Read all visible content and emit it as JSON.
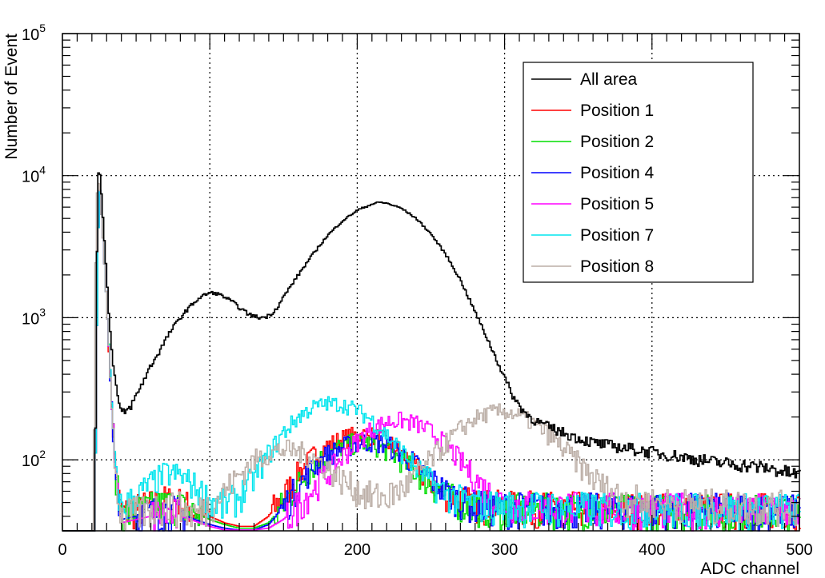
{
  "chart_data": {
    "type": "line",
    "title": "",
    "xlabel": "ADC channel",
    "ylabel": "Number of Event",
    "xlim": [
      0,
      500
    ],
    "ylim": [
      31.6,
      100000
    ],
    "yscale": "log",
    "grid": true,
    "legend_position": "top-right",
    "x_ticks": [
      {
        "value": 0,
        "label": "0"
      },
      {
        "value": 100,
        "label": "100"
      },
      {
        "value": 200,
        "label": "200"
      },
      {
        "value": 300,
        "label": "300"
      },
      {
        "value": 400,
        "label": "400"
      },
      {
        "value": 500,
        "label": "500"
      }
    ],
    "y_ticks": [
      {
        "value": 100,
        "base": "10",
        "exp": "2"
      },
      {
        "value": 1000,
        "base": "10",
        "exp": "3"
      },
      {
        "value": 10000,
        "base": "10",
        "exp": "4"
      },
      {
        "value": 100000,
        "base": "10",
        "exp": "5"
      }
    ],
    "series": [
      {
        "name": "All area",
        "color": "#000000",
        "points": [
          [
            20,
            31
          ],
          [
            22,
            31
          ],
          [
            23,
            900
          ],
          [
            24,
            9500
          ],
          [
            25,
            11500
          ],
          [
            26,
            9000
          ],
          [
            28,
            4200
          ],
          [
            30,
            2000
          ],
          [
            32,
            900
          ],
          [
            35,
            420
          ],
          [
            38,
            260
          ],
          [
            40,
            210
          ],
          [
            45,
            225
          ],
          [
            50,
            280
          ],
          [
            55,
            360
          ],
          [
            60,
            460
          ],
          [
            65,
            560
          ],
          [
            70,
            700
          ],
          [
            75,
            850
          ],
          [
            80,
            1000
          ],
          [
            85,
            1150
          ],
          [
            90,
            1300
          ],
          [
            95,
            1420
          ],
          [
            100,
            1500
          ],
          [
            105,
            1480
          ],
          [
            110,
            1400
          ],
          [
            115,
            1300
          ],
          [
            120,
            1180
          ],
          [
            125,
            1080
          ],
          [
            130,
            1020
          ],
          [
            135,
            1000
          ],
          [
            140,
            1030
          ],
          [
            145,
            1150
          ],
          [
            150,
            1400
          ],
          [
            160,
            2000
          ],
          [
            170,
            2800
          ],
          [
            180,
            3800
          ],
          [
            190,
            4800
          ],
          [
            200,
            5700
          ],
          [
            210,
            6300
          ],
          [
            215,
            6500
          ],
          [
            220,
            6400
          ],
          [
            230,
            5900
          ],
          [
            240,
            5000
          ],
          [
            250,
            3900
          ],
          [
            260,
            2800
          ],
          [
            270,
            1850
          ],
          [
            280,
            1100
          ],
          [
            290,
            650
          ],
          [
            300,
            380
          ],
          [
            305,
            290
          ],
          [
            310,
            240
          ],
          [
            315,
            210
          ],
          [
            320,
            190
          ],
          [
            330,
            170
          ],
          [
            340,
            155
          ],
          [
            350,
            142
          ],
          [
            360,
            132
          ],
          [
            380,
            122
          ],
          [
            400,
            113
          ],
          [
            420,
            105
          ],
          [
            440,
            97
          ],
          [
            460,
            92
          ],
          [
            480,
            87
          ],
          [
            490,
            82
          ],
          [
            500,
            78
          ]
        ]
      },
      {
        "name": "Position 1",
        "color": "#ff0000",
        "points": [
          [
            20,
            31
          ],
          [
            22,
            31
          ],
          [
            23,
            400
          ],
          [
            25,
            9500
          ],
          [
            28,
            3000
          ],
          [
            32,
            500
          ],
          [
            36,
            80
          ],
          [
            40,
            42
          ],
          [
            50,
            45
          ],
          [
            60,
            48
          ],
          [
            70,
            52
          ],
          [
            80,
            50
          ],
          [
            90,
            44
          ],
          [
            100,
            40
          ],
          [
            110,
            36
          ],
          [
            120,
            34
          ],
          [
            130,
            34
          ],
          [
            140,
            40
          ],
          [
            150,
            55
          ],
          [
            160,
            80
          ],
          [
            170,
            105
          ],
          [
            180,
            125
          ],
          [
            190,
            140
          ],
          [
            200,
            150
          ],
          [
            210,
            148
          ],
          [
            220,
            135
          ],
          [
            230,
            112
          ],
          [
            240,
            88
          ],
          [
            250,
            70
          ],
          [
            260,
            58
          ],
          [
            270,
            52
          ],
          [
            280,
            49
          ],
          [
            300,
            47
          ],
          [
            350,
            46
          ],
          [
            400,
            45
          ],
          [
            450,
            45
          ],
          [
            500,
            45
          ]
        ]
      },
      {
        "name": "Position 2",
        "color": "#00dd00",
        "points": [
          [
            20,
            31
          ],
          [
            22,
            31
          ],
          [
            23,
            400
          ],
          [
            25,
            9500
          ],
          [
            28,
            3000
          ],
          [
            32,
            500
          ],
          [
            36,
            80
          ],
          [
            40,
            40
          ],
          [
            50,
            43
          ],
          [
            60,
            46
          ],
          [
            70,
            49
          ],
          [
            80,
            47
          ],
          [
            90,
            42
          ],
          [
            100,
            38
          ],
          [
            110,
            35
          ],
          [
            120,
            33
          ],
          [
            130,
            33
          ],
          [
            140,
            36
          ],
          [
            150,
            48
          ],
          [
            160,
            68
          ],
          [
            170,
            90
          ],
          [
            180,
            110
          ],
          [
            190,
            125
          ],
          [
            200,
            132
          ],
          [
            210,
            130
          ],
          [
            220,
            118
          ],
          [
            230,
            100
          ],
          [
            240,
            82
          ],
          [
            250,
            67
          ],
          [
            260,
            56
          ],
          [
            270,
            50
          ],
          [
            280,
            47
          ],
          [
            300,
            45
          ],
          [
            350,
            45
          ],
          [
            400,
            44
          ],
          [
            450,
            44
          ],
          [
            500,
            43
          ]
        ]
      },
      {
        "name": "Position 4",
        "color": "#0000ff",
        "points": [
          [
            20,
            31
          ],
          [
            22,
            31
          ],
          [
            23,
            400
          ],
          [
            25,
            9500
          ],
          [
            28,
            3000
          ],
          [
            32,
            500
          ],
          [
            36,
            80
          ],
          [
            40,
            38
          ],
          [
            50,
            40
          ],
          [
            60,
            42
          ],
          [
            70,
            44
          ],
          [
            80,
            42
          ],
          [
            90,
            38
          ],
          [
            100,
            35
          ],
          [
            110,
            33
          ],
          [
            120,
            32
          ],
          [
            130,
            32
          ],
          [
            140,
            35
          ],
          [
            150,
            46
          ],
          [
            160,
            66
          ],
          [
            170,
            88
          ],
          [
            180,
            108
          ],
          [
            190,
            122
          ],
          [
            200,
            132
          ],
          [
            210,
            135
          ],
          [
            220,
            128
          ],
          [
            230,
            112
          ],
          [
            240,
            92
          ],
          [
            250,
            74
          ],
          [
            260,
            60
          ],
          [
            270,
            52
          ],
          [
            280,
            48
          ],
          [
            300,
            46
          ],
          [
            350,
            45
          ],
          [
            400,
            45
          ],
          [
            450,
            45
          ],
          [
            500,
            44
          ]
        ]
      },
      {
        "name": "Position 5",
        "color": "#ff00ff",
        "points": [
          [
            20,
            31
          ],
          [
            22,
            31
          ],
          [
            23,
            400
          ],
          [
            25,
            9500
          ],
          [
            28,
            3000
          ],
          [
            32,
            500
          ],
          [
            36,
            80
          ],
          [
            40,
            36
          ],
          [
            50,
            38
          ],
          [
            60,
            40
          ],
          [
            70,
            42
          ],
          [
            80,
            40
          ],
          [
            90,
            37
          ],
          [
            100,
            34
          ],
          [
            110,
            32
          ],
          [
            120,
            32
          ],
          [
            130,
            32
          ],
          [
            140,
            33
          ],
          [
            150,
            38
          ],
          [
            160,
            48
          ],
          [
            170,
            62
          ],
          [
            180,
            80
          ],
          [
            190,
            105
          ],
          [
            200,
            135
          ],
          [
            210,
            165
          ],
          [
            220,
            185
          ],
          [
            230,
            190
          ],
          [
            240,
            180
          ],
          [
            250,
            158
          ],
          [
            260,
            128
          ],
          [
            270,
            98
          ],
          [
            280,
            74
          ],
          [
            290,
            58
          ],
          [
            300,
            50
          ],
          [
            320,
            47
          ],
          [
            350,
            46
          ],
          [
            400,
            45
          ],
          [
            450,
            45
          ],
          [
            500,
            44
          ]
        ]
      },
      {
        "name": "Position 7",
        "color": "#00e5ee",
        "points": [
          [
            20,
            31
          ],
          [
            22,
            31
          ],
          [
            23,
            400
          ],
          [
            25,
            9500
          ],
          [
            28,
            3000
          ],
          [
            32,
            500
          ],
          [
            36,
            80
          ],
          [
            40,
            45
          ],
          [
            50,
            55
          ],
          [
            60,
            68
          ],
          [
            70,
            80
          ],
          [
            80,
            78
          ],
          [
            90,
            65
          ],
          [
            100,
            52
          ],
          [
            110,
            48
          ],
          [
            120,
            55
          ],
          [
            130,
            75
          ],
          [
            140,
            110
          ],
          [
            150,
            155
          ],
          [
            160,
            200
          ],
          [
            170,
            235
          ],
          [
            180,
            250
          ],
          [
            190,
            245
          ],
          [
            200,
            225
          ],
          [
            210,
            190
          ],
          [
            220,
            150
          ],
          [
            230,
            115
          ],
          [
            240,
            88
          ],
          [
            250,
            70
          ],
          [
            260,
            58
          ],
          [
            270,
            52
          ],
          [
            280,
            49
          ],
          [
            300,
            47
          ],
          [
            350,
            46
          ],
          [
            400,
            45
          ],
          [
            450,
            45
          ],
          [
            500,
            45
          ]
        ]
      },
      {
        "name": "Position 8",
        "color": "#bbaea6",
        "points": [
          [
            20,
            31
          ],
          [
            21,
            31
          ],
          [
            22,
            850
          ],
          [
            23,
            7000
          ],
          [
            25,
            9500
          ],
          [
            28,
            3000
          ],
          [
            32,
            500
          ],
          [
            36,
            80
          ],
          [
            40,
            40
          ],
          [
            50,
            42
          ],
          [
            60,
            45
          ],
          [
            70,
            48
          ],
          [
            80,
            46
          ],
          [
            90,
            42
          ],
          [
            100,
            48
          ],
          [
            110,
            60
          ],
          [
            120,
            78
          ],
          [
            130,
            98
          ],
          [
            140,
            112
          ],
          [
            150,
            118
          ],
          [
            160,
            115
          ],
          [
            170,
            105
          ],
          [
            180,
            88
          ],
          [
            190,
            72
          ],
          [
            200,
            62
          ],
          [
            210,
            55
          ],
          [
            220,
            55
          ],
          [
            230,
            62
          ],
          [
            240,
            78
          ],
          [
            250,
            100
          ],
          [
            260,
            130
          ],
          [
            270,
            165
          ],
          [
            280,
            195
          ],
          [
            290,
            215
          ],
          [
            300,
            220
          ],
          [
            310,
            205
          ],
          [
            320,
            180
          ],
          [
            330,
            150
          ],
          [
            340,
            120
          ],
          [
            350,
            95
          ],
          [
            360,
            75
          ],
          [
            370,
            62
          ],
          [
            380,
            55
          ],
          [
            390,
            52
          ],
          [
            400,
            50
          ],
          [
            450,
            48
          ],
          [
            500,
            47
          ]
        ]
      }
    ]
  }
}
